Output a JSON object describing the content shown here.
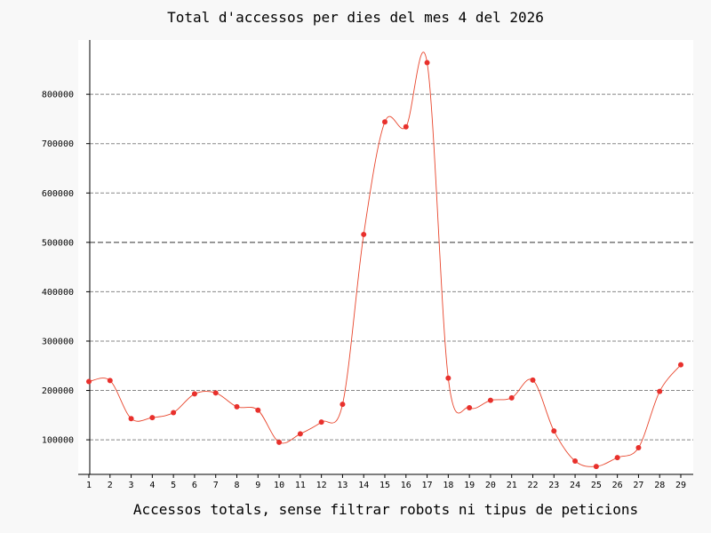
{
  "chart_data": {
    "type": "line",
    "title": "Total d'accessos per dies del mes 4 del 2026",
    "xlabel": "Accessos totals, sense filtrar robots ni tipus de peticions",
    "ylabel": "",
    "x": [
      1,
      2,
      3,
      4,
      5,
      6,
      7,
      8,
      9,
      10,
      11,
      12,
      13,
      14,
      15,
      16,
      17,
      18,
      19,
      20,
      21,
      22,
      23,
      24,
      25,
      26,
      27,
      28,
      29
    ],
    "x_tick_labels": [
      "1",
      "2",
      "3",
      "4",
      "5",
      "6",
      "7",
      "8",
      "9",
      "10",
      "11",
      "12",
      "13",
      "14",
      "15",
      "16",
      "17",
      "18",
      "19",
      "20",
      "21",
      "22",
      "23",
      "24",
      "25",
      "26",
      "27",
      "28",
      "29"
    ],
    "y": [
      218000,
      220000,
      143000,
      145000,
      155000,
      193000,
      195000,
      167000,
      160000,
      95000,
      112000,
      136000,
      172000,
      516000,
      744000,
      734000,
      864000,
      225000,
      165000,
      180000,
      185000,
      221000,
      118000,
      57000,
      46000,
      64000,
      84000,
      198000,
      252000
    ],
    "y_ticks": [
      100000,
      200000,
      300000,
      400000,
      500000,
      600000,
      700000,
      800000
    ],
    "y_tick_labels": [
      "100000",
      "200000",
      "300000",
      "400000",
      "500000",
      "600000",
      "700000",
      "800000"
    ],
    "highlight_gridline": 500000,
    "ylim": [
      30000,
      910000
    ],
    "xlim": [
      0.5,
      29.5
    ],
    "grid": "horizontal-dashed",
    "legend": "none",
    "colors": {
      "line": "#e8452c",
      "marker": "#e8302c",
      "grid": "#888888",
      "highlight_grid": "#333333",
      "plot_bg": "#ffffff",
      "page_bg": "#f8f8f8"
    }
  }
}
